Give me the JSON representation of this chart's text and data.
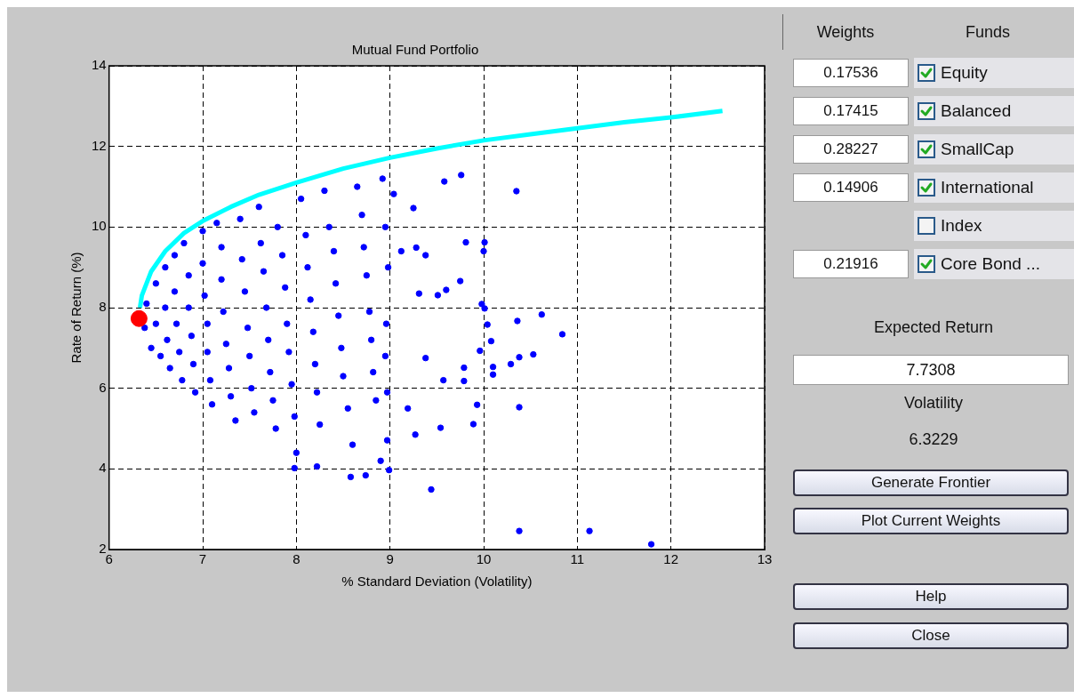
{
  "chart_data": [
    {
      "type": "scatter",
      "title": "Mutual Fund Portfolio",
      "xlabel": "% Standard Deviation (Volatility)",
      "ylabel": "Rate of Return (%)",
      "xlim": [
        6,
        13
      ],
      "ylim": [
        2,
        14
      ],
      "xticks": [
        6,
        7,
        8,
        9,
        10,
        11,
        12,
        13
      ],
      "yticks": [
        2,
        4,
        6,
        8,
        10,
        12,
        14
      ],
      "grid": true,
      "legend": false,
      "marker": "circle",
      "series": [
        {
          "type": "scatter",
          "color": "#0000ff",
          "x": [
            6.38,
            6.4,
            6.45,
            6.5,
            6.5,
            6.55,
            6.6,
            6.6,
            6.62,
            6.65,
            6.7,
            6.7,
            6.72,
            6.75,
            6.78,
            6.8,
            6.85,
            6.85,
            6.88,
            6.9,
            6.92,
            7.0,
            7.0,
            7.02,
            7.05,
            7.05,
            7.08,
            7.1,
            7.15,
            7.2,
            7.2,
            7.22,
            7.25,
            7.28,
            7.3,
            7.35,
            7.4,
            7.42,
            7.45,
            7.48,
            7.5,
            7.52,
            7.55,
            7.6,
            7.62,
            7.65,
            7.68,
            7.7,
            7.72,
            7.75,
            7.78,
            7.8,
            7.85,
            7.88,
            7.9,
            7.92,
            7.95,
            7.98,
            8.0,
            8.05,
            8.1,
            8.12,
            8.15,
            8.18,
            8.2,
            8.22,
            8.25,
            8.3,
            8.35,
            8.4,
            8.42,
            8.45,
            8.48,
            8.5,
            8.55,
            8.6,
            8.65,
            8.7,
            8.72,
            8.75,
            8.78,
            8.8,
            8.82,
            8.85,
            8.9,
            8.92,
            8.95,
            8.98,
            8.96,
            8.95,
            8.97,
            7.98,
            8.22,
            8.58,
            8.74,
            9.76,
            9.58,
            10.35,
            9.81,
            10.01,
            10.0,
            9.75,
            9.98,
            10.01,
            10.62,
            10.36,
            10.84,
            10.04,
            10.08,
            9.96,
            10.53,
            10.38,
            10.29,
            10.1,
            10.1,
            9.79,
            9.79,
            9.57,
            10.38,
            9.93,
            9.89,
            9.54,
            9.44,
            10.38,
            11.13,
            11.79,
            8.97,
            8.99,
            9.27,
            9.19,
            9.38,
            9.31,
            9.6,
            9.51,
            9.38,
            9.28,
            9.12,
            9.25,
            9.04
          ],
          "values": [
            7.5,
            8.1,
            7.0,
            8.6,
            7.6,
            6.8,
            9.0,
            8.0,
            7.2,
            6.5,
            9.3,
            8.4,
            7.6,
            6.9,
            6.2,
            9.6,
            8.8,
            8.0,
            7.3,
            6.6,
            5.9,
            9.9,
            9.1,
            8.3,
            7.6,
            6.9,
            6.2,
            5.6,
            10.1,
            9.5,
            8.7,
            7.9,
            7.1,
            6.5,
            5.8,
            5.2,
            10.2,
            9.2,
            8.4,
            7.5,
            6.8,
            6.0,
            5.4,
            10.5,
            9.6,
            8.9,
            8.0,
            7.2,
            6.4,
            5.7,
            5.0,
            10.0,
            9.3,
            8.5,
            7.6,
            6.9,
            6.1,
            5.3,
            4.4,
            10.7,
            9.8,
            9.0,
            8.2,
            7.4,
            6.6,
            5.9,
            5.1,
            10.9,
            10.0,
            9.4,
            8.6,
            7.8,
            7.0,
            6.3,
            5.5,
            4.6,
            11.0,
            10.3,
            9.5,
            8.8,
            7.9,
            7.2,
            6.4,
            5.7,
            4.2,
            11.2,
            10.0,
            9.0,
            7.6,
            6.8,
            5.9,
            4.02,
            4.06,
            3.8,
            3.84,
            11.29,
            11.13,
            10.89,
            9.62,
            9.62,
            9.4,
            8.66,
            8.09,
            7.98,
            7.83,
            7.67,
            7.34,
            7.58,
            7.17,
            6.93,
            6.84,
            6.77,
            6.6,
            6.53,
            6.34,
            6.51,
            6.18,
            6.2,
            5.53,
            5.59,
            5.11,
            5.02,
            3.49,
            2.46,
            2.46,
            2.13,
            4.71,
            3.97,
            4.85,
            5.5,
            6.75,
            8.35,
            8.44,
            8.31,
            9.3,
            9.49,
            9.4,
            10.47,
            10.82
          ]
        },
        {
          "type": "line",
          "color": "#00ffff",
          "marker": "none",
          "x": [
            6.33,
            6.35,
            6.45,
            6.6,
            6.8,
            7.0,
            7.3,
            7.6,
            8.0,
            8.5,
            9.0,
            9.5,
            10.0,
            10.5,
            11.0,
            11.5,
            12.0,
            12.55
          ],
          "values": [
            8.0,
            8.3,
            8.9,
            9.4,
            9.85,
            10.15,
            10.5,
            10.8,
            11.1,
            11.45,
            11.72,
            11.95,
            12.15,
            12.3,
            12.45,
            12.6,
            12.72,
            12.88
          ]
        },
        {
          "type": "scatter",
          "color": "#ff0000",
          "x": [
            6.32
          ],
          "values": [
            7.73
          ]
        }
      ]
    },
    {
      "type": "other",
      "annotations": [
        "Weights",
        "Funds",
        "0.17536",
        "Equity",
        "0.17415",
        "Balanced",
        "0.28227",
        "SmallCap",
        "0.14906",
        "International",
        "Index",
        "0.21916",
        "Core Bond ...",
        "Expected Return",
        "7.7308",
        "Volatility",
        "6.3229",
        "Generate Frontier",
        "Plot Current Weights",
        "Help",
        "Close"
      ]
    }
  ]
}
